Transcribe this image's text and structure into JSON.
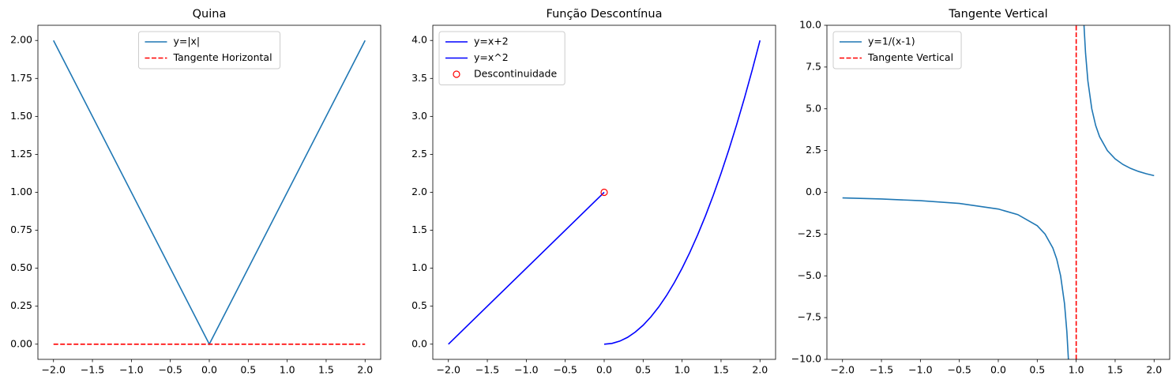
{
  "chart_data": [
    {
      "type": "line",
      "title": "Quina",
      "legend": "upper center",
      "xlim": [
        -2.2,
        2.2
      ],
      "ylim": [
        -0.1,
        2.1
      ],
      "xticks": [
        {
          "value": -2,
          "label": "−2.0"
        },
        {
          "value": -1.5,
          "label": "−1.5"
        },
        {
          "value": -1,
          "label": "−1.0"
        },
        {
          "value": -0.5,
          "label": "−0.5"
        },
        {
          "value": 0,
          "label": "0.0"
        },
        {
          "value": 0.5,
          "label": "0.5"
        },
        {
          "value": 1,
          "label": "1.0"
        },
        {
          "value": 1.5,
          "label": "1.5"
        },
        {
          "value": 2,
          "label": "2.0"
        }
      ],
      "yticks": [
        {
          "value": 0,
          "label": "0.00"
        },
        {
          "value": 0.25,
          "label": "0.25"
        },
        {
          "value": 0.5,
          "label": "0.50"
        },
        {
          "value": 0.75,
          "label": "0.75"
        },
        {
          "value": 1,
          "label": "1.00"
        },
        {
          "value": 1.25,
          "label": "1.25"
        },
        {
          "value": 1.5,
          "label": "1.50"
        },
        {
          "value": 1.75,
          "label": "1.75"
        },
        {
          "value": 2,
          "label": "2.00"
        }
      ],
      "series": [
        {
          "name": "y=|x|",
          "color": "#1f77b4",
          "style": "solid",
          "x": [
            -2,
            0,
            2
          ],
          "values": [
            2,
            0,
            2
          ]
        },
        {
          "name": "Tangente Horizontal",
          "color": "#ff0000",
          "style": "dashed",
          "x": [
            -2,
            2
          ],
          "values": [
            0,
            0
          ]
        }
      ]
    },
    {
      "type": "line",
      "title": "Função Descontínua",
      "legend": "upper left",
      "xlim": [
        -2.2,
        2.2
      ],
      "ylim": [
        -0.2,
        4.2
      ],
      "xticks": [
        {
          "value": -2,
          "label": "−2.0"
        },
        {
          "value": -1.5,
          "label": "−1.5"
        },
        {
          "value": -1,
          "label": "−1.0"
        },
        {
          "value": -0.5,
          "label": "−0.5"
        },
        {
          "value": 0,
          "label": "0.0"
        },
        {
          "value": 0.5,
          "label": "0.5"
        },
        {
          "value": 1,
          "label": "1.0"
        },
        {
          "value": 1.5,
          "label": "1.5"
        },
        {
          "value": 2,
          "label": "2.0"
        }
      ],
      "yticks": [
        {
          "value": 0,
          "label": "0.0"
        },
        {
          "value": 0.5,
          "label": "0.5"
        },
        {
          "value": 1,
          "label": "1.0"
        },
        {
          "value": 1.5,
          "label": "1.5"
        },
        {
          "value": 2,
          "label": "2.0"
        },
        {
          "value": 2.5,
          "label": "2.5"
        },
        {
          "value": 3,
          "label": "3.0"
        },
        {
          "value": 3.5,
          "label": "3.5"
        },
        {
          "value": 4,
          "label": "4.0"
        }
      ],
      "series": [
        {
          "name": "y=x+2",
          "color": "#0000ff",
          "style": "solid",
          "x": [
            -2,
            0
          ],
          "values": [
            0,
            2
          ]
        },
        {
          "name": "y=x^2",
          "color": "#0000ff",
          "style": "solid",
          "x": [
            0,
            0.1,
            0.2,
            0.3,
            0.4,
            0.5,
            0.6,
            0.7,
            0.8,
            0.9,
            1,
            1.1,
            1.2,
            1.3,
            1.4,
            1.5,
            1.6,
            1.7,
            1.8,
            1.9,
            2
          ],
          "values": [
            0,
            0.01,
            0.04,
            0.09,
            0.16,
            0.25,
            0.36,
            0.49,
            0.64,
            0.81,
            1,
            1.21,
            1.44,
            1.69,
            1.96,
            2.25,
            2.56,
            2.89,
            3.24,
            3.61,
            4
          ]
        },
        {
          "name": "Descontinuidade",
          "color": "#ff0000",
          "style": "open-circle",
          "x": [
            0
          ],
          "values": [
            2
          ]
        }
      ]
    },
    {
      "type": "line",
      "title": "Tangente Vertical",
      "legend": "upper left",
      "xlim": [
        -2.2,
        2.2
      ],
      "ylim": [
        -10,
        10
      ],
      "xticks": [
        {
          "value": -2,
          "label": "−2.0"
        },
        {
          "value": -1.5,
          "label": "−1.5"
        },
        {
          "value": -1,
          "label": "−1.0"
        },
        {
          "value": -0.5,
          "label": "−0.5"
        },
        {
          "value": 0,
          "label": "0.0"
        },
        {
          "value": 0.5,
          "label": "0.5"
        },
        {
          "value": 1,
          "label": "1.0"
        },
        {
          "value": 1.5,
          "label": "1.5"
        },
        {
          "value": 2,
          "label": "2.0"
        }
      ],
      "yticks": [
        {
          "value": -10,
          "label": "−10.0"
        },
        {
          "value": -7.5,
          "label": "−7.5"
        },
        {
          "value": -5,
          "label": "−5.0"
        },
        {
          "value": -2.5,
          "label": "−2.5"
        },
        {
          "value": 0,
          "label": "0.0"
        },
        {
          "value": 2.5,
          "label": "2.5"
        },
        {
          "value": 5,
          "label": "5.0"
        },
        {
          "value": 7.5,
          "label": "7.5"
        },
        {
          "value": 10,
          "label": "10.0"
        }
      ],
      "series": [
        {
          "name": "y=1/(x-1)",
          "color": "#1f77b4",
          "style": "solid",
          "x": [
            -2,
            -1.5,
            -1,
            -0.5,
            0,
            0.25,
            0.5,
            0.6,
            0.7,
            0.75,
            0.8,
            0.85,
            0.88,
            0.9,
            0.92,
            null,
            1.08,
            1.1,
            1.12,
            1.15,
            1.2,
            1.25,
            1.3,
            1.4,
            1.5,
            1.6,
            1.7,
            1.8,
            1.9,
            2
          ],
          "values": [
            -0.3333,
            -0.4,
            -0.5,
            -0.6667,
            -1,
            -1.3333,
            -2,
            -2.5,
            -3.3333,
            -4,
            -5,
            -6.6667,
            -8.3333,
            -10,
            -12.5,
            null,
            12.5,
            10,
            8.3333,
            6.6667,
            5,
            4,
            3.3333,
            2.5,
            2,
            1.6667,
            1.4286,
            1.25,
            1.1111,
            1
          ]
        },
        {
          "name": "Tangente Vertical",
          "color": "#ff0000",
          "style": "dashed",
          "x": [
            1,
            1
          ],
          "values": [
            -10,
            10
          ]
        }
      ]
    }
  ]
}
